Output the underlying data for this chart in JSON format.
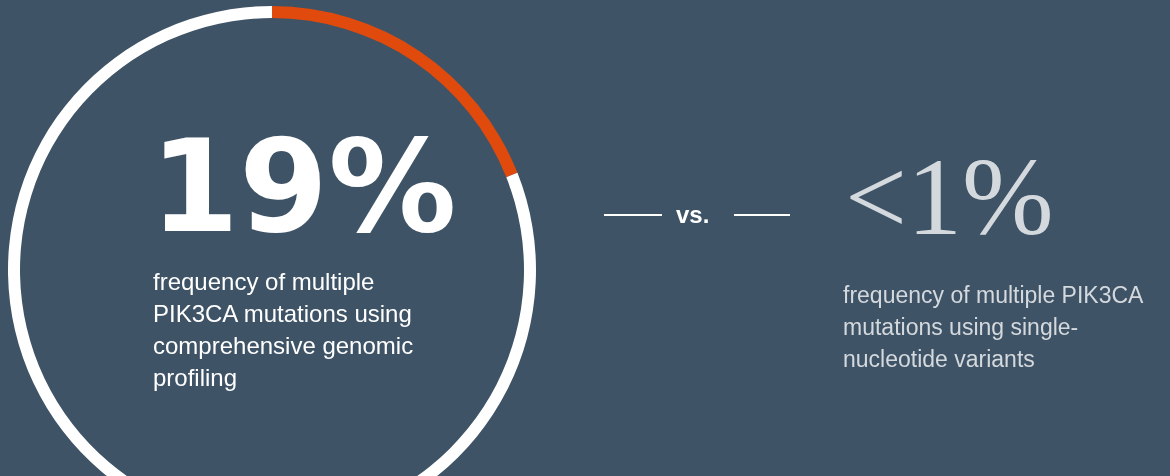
{
  "chart_data": {
    "type": "donut",
    "categories": [
      null,
      null
    ],
    "values": [
      19,
      81
    ],
    "colors": [
      "#e04a0c",
      "#ffffff"
    ],
    "annotations": [
      "19%",
      "frequency of multiple PIK3CA mutations using comprehensive genomic profiling",
      "vs.",
      "<1%",
      "frequency of multiple PIK3CA mutations using single-nucleotide variants"
    ]
  }
}
